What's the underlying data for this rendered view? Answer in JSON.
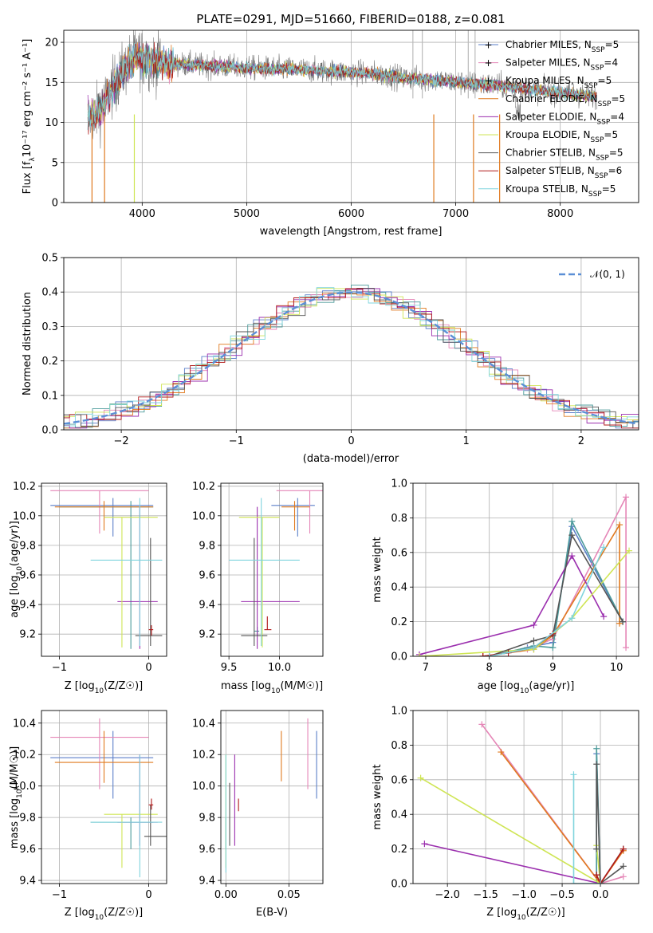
{
  "figure": {
    "title": "PLATE=0291, MJD=51660, FIBERID=0188, z=0.081"
  },
  "series": [
    {
      "name": "Chabrier MILES, N",
      "sub": "SSP",
      "suf": "=5",
      "color": "#5b7fc9"
    },
    {
      "name": "Salpeter MILES, N",
      "sub": "SSP",
      "suf": "=4",
      "color": "#e586b7"
    },
    {
      "name": "Kroupa MILES, N",
      "sub": "SSP",
      "suf": "=5",
      "color": "#4c9b9b"
    },
    {
      "name": "Chabrier ELODIE, N",
      "sub": "SSP",
      "suf": "=5",
      "color": "#e07a1f"
    },
    {
      "name": "Salpeter ELODIE, N",
      "sub": "SSP",
      "suf": "=4",
      "color": "#9b2fae"
    },
    {
      "name": "Kroupa ELODIE, N",
      "sub": "SSP",
      "suf": "=5",
      "color": "#cfe555"
    },
    {
      "name": "Chabrier STELIB, N",
      "sub": "SSP",
      "suf": "=5",
      "color": "#555555"
    },
    {
      "name": "Salpeter STELIB, N",
      "sub": "SSP",
      "suf": "=6",
      "color": "#b01818"
    },
    {
      "name": "Kroupa STELIB, N",
      "sub": "SSP",
      "suf": "=5",
      "color": "#7fd4dd"
    }
  ],
  "chart_data": [
    {
      "id": "spectrum",
      "type": "line",
      "title": "PLATE=0291, MJD=51660, FIBERID=0188, z=0.081",
      "xlabel": "wavelength [Angstrom, rest frame]",
      "ylabel_main": "Flux [f",
      "ylabel_sub": "λ",
      "ylabel_rest": "10⁻¹⁷ erg cm⁻² s⁻¹ A⁻¹]",
      "xlim": [
        3250,
        8750
      ],
      "ylim": [
        0,
        21.5
      ],
      "xticks": [
        "4000",
        "5000",
        "6000",
        "7000",
        "8000"
      ],
      "yticks": [
        "0",
        "5",
        "10",
        "15",
        "20"
      ],
      "continuum": {
        "x": [
          3480,
          3600,
          3700,
          3850,
          3950,
          4000,
          4100,
          4200,
          4300,
          4500,
          4700,
          5000,
          5300,
          5600,
          5900,
          6200,
          6500,
          6800,
          7000,
          7200,
          7400,
          7600,
          7800,
          8000,
          8200,
          8350
        ],
        "y": [
          10.5,
          11.5,
          14,
          17,
          18.5,
          18,
          17.6,
          17.4,
          17.3,
          17.2,
          17,
          16.8,
          16.7,
          16.5,
          16.3,
          16.1,
          15.6,
          15.3,
          15.0,
          14.8,
          14.6,
          14.3,
          14.0,
          13.7,
          13.4,
          13.2
        ]
      }
    },
    {
      "id": "residual-hist",
      "type": "line",
      "xlabel": "(data-model)/error",
      "ylabel": "Normed distribution",
      "legend": "𝒩(0, 1)",
      "xlim": [
        -2.5,
        2.5
      ],
      "ylim": [
        0,
        0.5
      ],
      "xticks": [
        "−2",
        "−1",
        "0",
        "1",
        "2"
      ],
      "yticks": [
        "0.0",
        "0.1",
        "0.2",
        "0.3",
        "0.4",
        "0.5"
      ]
    },
    {
      "id": "age-vs-z",
      "type": "scatter",
      "xlabel_pre": "Z [log",
      "xlabel_sub": "10",
      "xlabel_post": "(Z/Z☉)]",
      "ylabel_pre": "age  [log",
      "ylabel_sub": "10",
      "ylabel_post": "(age/yr)]",
      "xlim": [
        -1.2,
        0.2
      ],
      "ylim": [
        9.05,
        10.22
      ],
      "xticks": [
        "−1",
        "0"
      ],
      "yticks": [
        "9.2",
        "9.4",
        "9.6",
        "9.8",
        "10.0",
        "10.2"
      ],
      "points": [
        {
          "s": 0,
          "x": -0.4,
          "y": 10.07,
          "xe": [
            -1.1,
            0.05
          ],
          "ye": [
            9.86,
            10.12
          ]
        },
        {
          "s": 1,
          "x": -0.55,
          "y": 10.17,
          "xe": [
            -1.1,
            0.0
          ],
          "ye": [
            9.88,
            10.17
          ]
        },
        {
          "s": 2,
          "x": -0.2,
          "y": 10.06,
          "xe": [
            -1.0,
            0.05
          ],
          "ye": [
            9.1,
            10.1
          ]
        },
        {
          "s": 3,
          "x": -0.5,
          "y": 10.06,
          "xe": [
            -1.05,
            0.05
          ],
          "ye": [
            9.9,
            10.1
          ]
        },
        {
          "s": 4,
          "x": -0.1,
          "y": 9.42,
          "xe": [
            -0.35,
            0.1
          ],
          "ye": [
            9.1,
            10.06
          ]
        },
        {
          "s": 5,
          "x": -0.3,
          "y": 9.99,
          "xe": [
            -0.5,
            0.1
          ],
          "ye": [
            9.11,
            9.99
          ]
        },
        {
          "s": 6,
          "x": 0.02,
          "y": 9.19,
          "xe": [
            -0.15,
            0.15
          ],
          "ye": [
            9.12,
            9.85
          ]
        },
        {
          "s": 7,
          "x": 0.03,
          "y": 9.23,
          "xe": [
            0.0,
            0.05
          ],
          "ye": [
            9.19,
            9.26
          ]
        },
        {
          "s": 8,
          "x": -0.1,
          "y": 9.7,
          "xe": [
            -0.65,
            0.15
          ],
          "ye": [
            9.12,
            10.12
          ]
        }
      ]
    },
    {
      "id": "age-vs-mass",
      "type": "scatter",
      "xlabel_pre": "mass [log",
      "xlabel_sub": "10",
      "xlabel_post": "(M/M☉)]",
      "xlim": [
        9.42,
        10.43
      ],
      "ylim": [
        9.05,
        10.22
      ],
      "xticks": [
        "9.5",
        "10.0"
      ],
      "yticks": [
        "9.2",
        "9.4",
        "9.6",
        "9.8",
        "10.0",
        "10.2"
      ],
      "points": [
        {
          "s": 0,
          "x": 10.18,
          "y": 10.07,
          "xe": [
            9.92,
            10.35
          ],
          "ye": [
            9.86,
            10.12
          ]
        },
        {
          "s": 1,
          "x": 10.3,
          "y": 10.17,
          "xe": [
            9.97,
            10.43
          ],
          "ye": [
            9.88,
            10.17
          ]
        },
        {
          "s": 2,
          "x": 9.78,
          "y": 9.22,
          "xe": [
            9.75,
            9.8
          ],
          "ye": [
            9.19,
            9.25
          ]
        },
        {
          "s": 3,
          "x": 10.15,
          "y": 10.06,
          "xe": [
            10.02,
            10.3
          ],
          "ye": [
            9.9,
            10.1
          ]
        },
        {
          "s": 4,
          "x": 9.78,
          "y": 9.42,
          "xe": [
            9.62,
            10.2
          ],
          "ye": [
            9.1,
            10.06
          ]
        },
        {
          "s": 5,
          "x": 9.83,
          "y": 9.99,
          "xe": [
            9.6,
            10.0
          ],
          "ye": [
            9.11,
            9.99
          ]
        },
        {
          "s": 6,
          "x": 9.75,
          "y": 9.19,
          "xe": [
            9.62,
            9.88
          ],
          "ye": [
            9.12,
            9.85
          ]
        },
        {
          "s": 7,
          "x": 9.88,
          "y": 9.23,
          "xe": [
            9.85,
            9.92
          ],
          "ye": [
            9.23,
            9.32
          ]
        },
        {
          "s": 8,
          "x": 9.82,
          "y": 9.7,
          "xe": [
            9.5,
            10.2
          ],
          "ye": [
            9.12,
            10.12
          ]
        }
      ]
    },
    {
      "id": "weight-vs-age",
      "type": "line",
      "xlabel_pre": "age  [log",
      "xlabel_sub": "10",
      "xlabel_post": "(age/yr)]",
      "ylabel": "mass weight",
      "xlim": [
        6.8,
        10.35
      ],
      "ylim": [
        0,
        1
      ],
      "xticks": [
        "7",
        "8",
        "9",
        "10"
      ],
      "yticks": [
        "0.0",
        "0.2",
        "0.4",
        "0.6",
        "0.8",
        "1.0"
      ],
      "series": [
        {
          "s": 0,
          "x": [
            8.0,
            8.6,
            9.0,
            9.3,
            10.1
          ],
          "y": [
            0.0,
            0.05,
            0.08,
            0.75,
            0.2
          ]
        },
        {
          "s": 1,
          "x": [
            7.9,
            8.6,
            9.0,
            10.15,
            10.15
          ],
          "y": [
            0.0,
            0.04,
            0.1,
            0.92,
            0.05
          ]
        },
        {
          "s": 2,
          "x": [
            8.0,
            8.7,
            9.0,
            9.3,
            10.1
          ],
          "y": [
            0.0,
            0.06,
            0.05,
            0.78,
            0.2
          ]
        },
        {
          "s": 3,
          "x": [
            7.9,
            8.7,
            9.0,
            10.05,
            10.05
          ],
          "y": [
            0.0,
            0.04,
            0.12,
            0.76,
            0.19
          ]
        },
        {
          "s": 4,
          "x": [
            6.9,
            8.7,
            9.3,
            9.8
          ],
          "y": [
            0.01,
            0.18,
            0.58,
            0.23
          ]
        },
        {
          "s": 5,
          "x": [
            6.9,
            8.7,
            9.3,
            10.2
          ],
          "y": [
            0.0,
            0.04,
            0.22,
            0.61
          ]
        },
        {
          "s": 6,
          "x": [
            8.0,
            8.7,
            9.0,
            9.3,
            10.1
          ],
          "y": [
            0.0,
            0.09,
            0.12,
            0.7,
            0.2
          ]
        },
        {
          "s": 7,
          "x": [
            7.9,
            8.3,
            8.7,
            9.0
          ],
          "y": [
            0.0,
            0.02,
            0.05,
            0.13
          ]
        },
        {
          "s": 8,
          "x": [
            8.0,
            8.7,
            9.3,
            9.8
          ],
          "y": [
            0.0,
            0.05,
            0.22,
            0.63
          ]
        }
      ]
    },
    {
      "id": "mass-vs-z",
      "type": "scatter",
      "xlabel_pre": "Z [log",
      "xlabel_sub": "10",
      "xlabel_post": "(Z/Z☉)]",
      "ylabel_pre": "mass [log",
      "ylabel_sub": "10",
      "ylabel_post": "(M/M☉)]",
      "xlim": [
        -1.2,
        0.2
      ],
      "ylim": [
        9.38,
        10.48
      ],
      "xticks": [
        "−1",
        "0"
      ],
      "yticks": [
        "9.4",
        "9.6",
        "9.8",
        "10.0",
        "10.2",
        "10.4"
      ],
      "points": [
        {
          "s": 0,
          "x": -0.4,
          "y": 10.18,
          "xe": [
            -1.1,
            0.05
          ],
          "ye": [
            9.92,
            10.35
          ]
        },
        {
          "s": 1,
          "x": -0.55,
          "y": 10.31,
          "xe": [
            -1.1,
            0.0
          ],
          "ye": [
            9.98,
            10.43
          ]
        },
        {
          "s": 2,
          "x": -0.2,
          "y": 9.77,
          "xe": [
            -0.65,
            0.05
          ],
          "ye": [
            9.6,
            9.8
          ]
        },
        {
          "s": 3,
          "x": -0.5,
          "y": 10.15,
          "xe": [
            -1.05,
            0.05
          ],
          "ye": [
            10.02,
            10.35
          ]
        },
        {
          "s": 4,
          "x": -0.1,
          "y": 9.77,
          "xe": [
            -0.35,
            0.1
          ],
          "ye": [
            9.62,
            10.2
          ]
        },
        {
          "s": 5,
          "x": -0.3,
          "y": 9.82,
          "xe": [
            -0.5,
            0.1
          ],
          "ye": [
            9.48,
            9.82
          ]
        },
        {
          "s": 6,
          "x": 0.02,
          "y": 9.68,
          "xe": [
            -0.05,
            0.2
          ],
          "ye": [
            9.62,
            9.88
          ]
        },
        {
          "s": 7,
          "x": 0.03,
          "y": 9.88,
          "xe": [
            0.0,
            0.05
          ],
          "ye": [
            9.85,
            9.92
          ]
        },
        {
          "s": 8,
          "x": -0.1,
          "y": 9.77,
          "xe": [
            -0.65,
            0.15
          ],
          "ye": [
            9.42,
            10.2
          ]
        }
      ]
    },
    {
      "id": "mass-vs-ebv",
      "type": "scatter",
      "xlabel": "E(B-V)",
      "xlim": [
        -0.004,
        0.077
      ],
      "ylim": [
        9.38,
        10.48
      ],
      "xticks": [
        "0.00",
        "0.05"
      ],
      "yticks": [
        "9.4",
        "9.6",
        "9.8",
        "10.0",
        "10.2",
        "10.4"
      ],
      "points": [
        {
          "s": 0,
          "x": 0.072,
          "y": 10.18,
          "ye": [
            9.92,
            10.35
          ]
        },
        {
          "s": 1,
          "x": 0.065,
          "y": 10.31,
          "ye": [
            9.98,
            10.43
          ]
        },
        {
          "s": 2,
          "x": 0.0,
          "y": 9.77,
          "ye": [
            9.6,
            9.8
          ]
        },
        {
          "s": 3,
          "x": 0.044,
          "y": 10.15,
          "ye": [
            10.03,
            10.35
          ]
        },
        {
          "s": 4,
          "x": 0.007,
          "y": 9.77,
          "ye": [
            9.62,
            10.2
          ]
        },
        {
          "s": 5,
          "x": 0.0,
          "y": 9.82,
          "ye": [
            9.48,
            10.2
          ]
        },
        {
          "s": 6,
          "x": 0.003,
          "y": 9.75,
          "ye": [
            9.62,
            10.02
          ]
        },
        {
          "s": 7,
          "x": 0.01,
          "y": 9.88,
          "ye": [
            9.84,
            9.92
          ]
        },
        {
          "s": 8,
          "x": 0.0,
          "y": 9.7,
          "ye": [
            9.45,
            10.2
          ]
        }
      ]
    },
    {
      "id": "weight-vs-z",
      "type": "line",
      "xlabel_pre": "Z [log",
      "xlabel_sub": "10",
      "xlabel_post": "(Z/Z☉)]",
      "ylabel": "mass weight",
      "xlim": [
        -2.45,
        0.5
      ],
      "ylim": [
        0,
        1
      ],
      "xticks": [
        "−2.0",
        "−1.5",
        "−1.0",
        "−0.5",
        "0.0"
      ],
      "yticks": [
        "0.0",
        "0.2",
        "0.4",
        "0.6",
        "0.8",
        "1.0"
      ],
      "series": [
        {
          "s": 0,
          "x": [
            0.3,
            0.0,
            -0.05,
            -0.05,
            -0.05
          ],
          "y": [
            0.2,
            0.0,
            0.75,
            0.2,
            0.05
          ]
        },
        {
          "s": 1,
          "x": [
            -1.55,
            0.0,
            0.3
          ],
          "y": [
            0.92,
            0.0,
            0.04
          ]
        },
        {
          "s": 2,
          "x": [
            0.3,
            0.0,
            -0.05,
            -0.05
          ],
          "y": [
            0.2,
            0.0,
            0.78,
            0.0
          ]
        },
        {
          "s": 3,
          "x": [
            -1.3,
            0.0,
            0.3
          ],
          "y": [
            0.76,
            0.0,
            0.19
          ]
        },
        {
          "s": 4,
          "x": [
            -2.3,
            0.0
          ],
          "y": [
            0.23,
            0.0
          ]
        },
        {
          "s": 5,
          "x": [
            -2.35,
            0.0,
            -0.05
          ],
          "y": [
            0.61,
            0.0,
            0.22
          ]
        },
        {
          "s": 6,
          "x": [
            0.3,
            0.0,
            -0.05,
            -0.05
          ],
          "y": [
            0.1,
            0.0,
            0.69,
            0.2
          ]
        },
        {
          "s": 7,
          "x": [
            0.3,
            0.0,
            -0.05
          ],
          "y": [
            0.2,
            0.0,
            0.05
          ]
        },
        {
          "s": 8,
          "x": [
            -0.35,
            -0.35,
            0.0
          ],
          "y": [
            0.63,
            0.0,
            0.0
          ]
        }
      ]
    }
  ]
}
